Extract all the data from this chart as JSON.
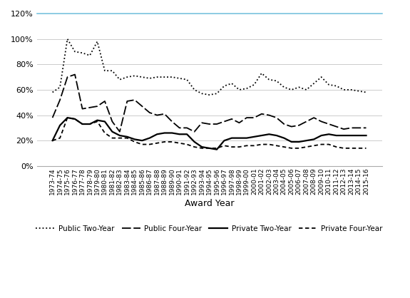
{
  "years": [
    "1973-74",
    "1974-75",
    "1975-76",
    "1976-77",
    "1977-78",
    "1978-79",
    "1979-80",
    "1980-81",
    "1981-82",
    "1982-83",
    "1983-84",
    "1984-85",
    "1985-86",
    "1986-87",
    "1987-88",
    "1988-89",
    "1989-90",
    "1990-91",
    "1991-92",
    "1992-93",
    "1993-94",
    "1994-95",
    "1995-96",
    "1996-97",
    "1997-98",
    "1998-99",
    "1999-00",
    "2000-01",
    "2001-02",
    "2002-03",
    "2003-04",
    "2004-05",
    "2005-06",
    "2006-07",
    "2007-08",
    "2008-09",
    "2009-10",
    "2010-11",
    "2011-12",
    "2012-13",
    "2013-14",
    "2014-15",
    "2015-16"
  ],
  "public_two_year": [
    0.58,
    0.62,
    1.0,
    0.9,
    0.89,
    0.87,
    0.98,
    0.75,
    0.75,
    0.68,
    0.7,
    0.71,
    0.7,
    0.69,
    0.7,
    0.7,
    0.7,
    0.69,
    0.68,
    0.6,
    0.57,
    0.56,
    0.57,
    0.63,
    0.65,
    0.6,
    0.61,
    0.64,
    0.73,
    0.68,
    0.67,
    0.62,
    0.6,
    0.62,
    0.6,
    0.65,
    0.7,
    0.64,
    0.63,
    0.6,
    0.6,
    0.59,
    0.58
  ],
  "public_four_year": [
    0.38,
    0.52,
    0.7,
    0.72,
    0.45,
    0.46,
    0.47,
    0.51,
    0.35,
    0.27,
    0.51,
    0.52,
    0.47,
    0.42,
    0.4,
    0.41,
    0.35,
    0.3,
    0.3,
    0.27,
    0.34,
    0.33,
    0.33,
    0.35,
    0.37,
    0.34,
    0.38,
    0.38,
    0.41,
    0.4,
    0.38,
    0.33,
    0.31,
    0.32,
    0.35,
    0.38,
    0.35,
    0.33,
    0.31,
    0.29,
    0.3,
    0.3,
    0.3
  ],
  "private_two_year": [
    0.2,
    0.32,
    0.38,
    0.37,
    0.33,
    0.33,
    0.36,
    0.35,
    0.27,
    0.24,
    0.23,
    0.21,
    0.2,
    0.22,
    0.25,
    0.26,
    0.26,
    0.25,
    0.25,
    0.19,
    0.15,
    0.14,
    0.13,
    0.2,
    0.22,
    0.22,
    0.22,
    0.23,
    0.24,
    0.25,
    0.24,
    0.22,
    0.19,
    0.19,
    0.2,
    0.21,
    0.24,
    0.25,
    0.24,
    0.24,
    0.24,
    0.24,
    0.24
  ],
  "private_four_year": [
    0.2,
    0.22,
    0.38,
    0.37,
    0.33,
    0.33,
    0.35,
    0.26,
    0.22,
    0.22,
    0.22,
    0.19,
    0.17,
    0.17,
    0.18,
    0.19,
    0.19,
    0.18,
    0.17,
    0.15,
    0.14,
    0.14,
    0.14,
    0.16,
    0.15,
    0.15,
    0.16,
    0.16,
    0.17,
    0.17,
    0.16,
    0.15,
    0.14,
    0.14,
    0.15,
    0.16,
    0.17,
    0.17,
    0.15,
    0.14,
    0.14,
    0.14,
    0.14
  ],
  "xlabel": "Award Year",
  "ylim": [
    0.0,
    1.2
  ],
  "yticks": [
    0.0,
    0.2,
    0.4,
    0.6,
    0.8,
    1.0,
    1.2
  ],
  "ytick_labels": [
    "0%",
    "20%",
    "40%",
    "60%",
    "80%",
    "100%",
    "120%"
  ],
  "bg_color": "#ffffff",
  "grid_color": "#cccccc",
  "line_color": "#000000",
  "top_spine_color": "#7ec8e3",
  "legend_entries": [
    "Public Two-Year",
    "Public Four-Year",
    "Private Two-Year",
    "Private Four-Year"
  ]
}
